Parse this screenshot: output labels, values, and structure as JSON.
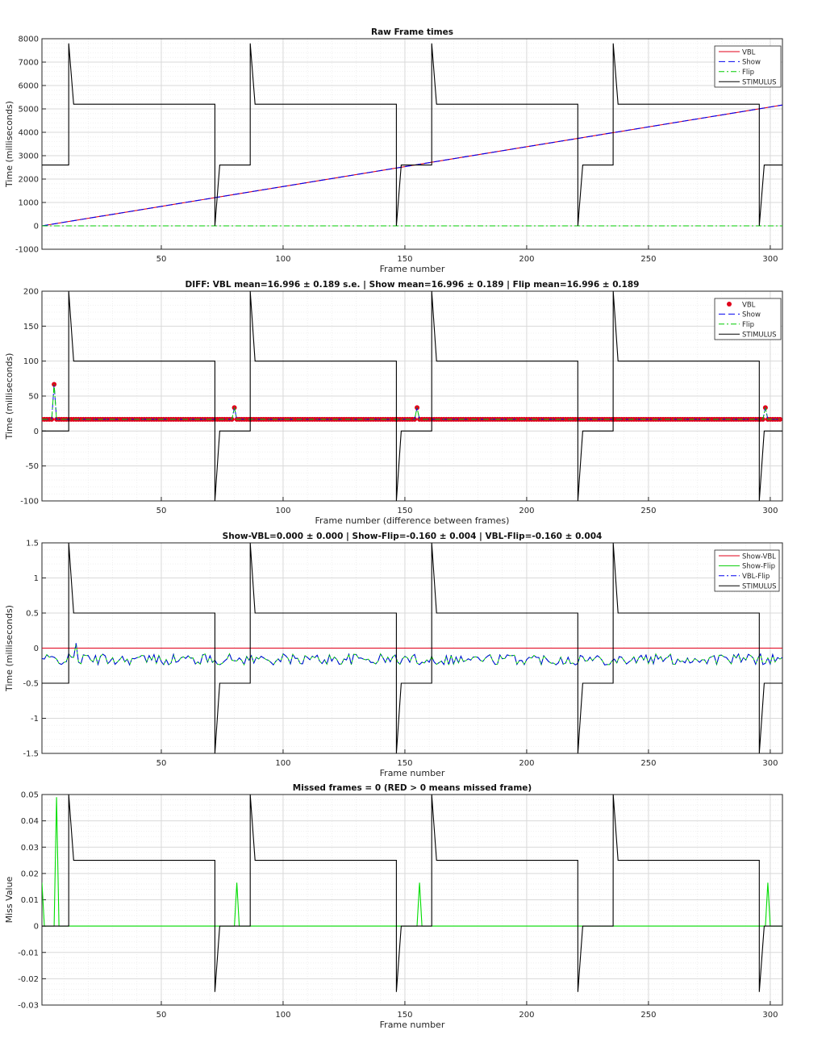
{
  "figure": {
    "background": "#ffffff"
  },
  "colors": {
    "vbl": "#e0001a",
    "show": "#0000ee",
    "flip": "#00cc00",
    "stimulus": "#000000",
    "missed": "#00dd00",
    "grid": "#d9d9d9"
  },
  "chart_data": [
    {
      "type": "line",
      "title": "Raw Frame times",
      "xlabel": "Frame number",
      "ylabel": "Time (milliseconds)",
      "xlim": [
        1,
        305
      ],
      "ylim": [
        -1000,
        8000
      ],
      "xticks": [
        50,
        100,
        150,
        200,
        250,
        300
      ],
      "yticks": [
        -1000,
        0,
        1000,
        2000,
        3000,
        4000,
        5000,
        6000,
        7000,
        8000
      ],
      "grid": true,
      "legend_position": "top-right",
      "series": [
        {
          "name": "VBL",
          "kind": "ramp",
          "slope": 16.996,
          "start_y": 0,
          "style": "solid",
          "color": "#e0001a"
        },
        {
          "name": "Show",
          "kind": "ramp",
          "slope": 16.996,
          "start_y": 0,
          "style": "dashed",
          "color": "#0000ee"
        },
        {
          "name": "Flip",
          "kind": "constant",
          "y": 0,
          "style": "dashdot",
          "color": "#00cc00"
        },
        {
          "name": "STIMULUS",
          "kind": "stimulus",
          "style": "solid",
          "color": "#000000",
          "levels": {
            "low": 2600,
            "high": 5200,
            "peak": 7800,
            "dip": 0
          }
        }
      ]
    },
    {
      "type": "line",
      "title": "DIFF: VBL mean=16.996 ± 0.189 s.e. | Show mean=16.996 ± 0.189 | Flip mean=16.996 ± 0.189",
      "xlabel": "Frame number (difference between frames)",
      "ylabel": "Time (milliseconds)",
      "xlim": [
        1,
        305
      ],
      "ylim": [
        -100,
        200
      ],
      "xticks": [
        50,
        100,
        150,
        200,
        250,
        300
      ],
      "yticks": [
        -100,
        -50,
        0,
        50,
        100,
        150,
        200
      ],
      "grid": true,
      "legend_position": "top-right",
      "baseline": 16.7,
      "spikes": [
        {
          "x": 6,
          "y": 66.7
        },
        {
          "x": 80,
          "y": 33.4
        },
        {
          "x": 155,
          "y": 33.4
        },
        {
          "x": 298,
          "y": 33.4
        }
      ],
      "series": [
        {
          "name": "VBL",
          "kind": "markers",
          "color": "#e0001a"
        },
        {
          "name": "Show",
          "kind": "diff",
          "style": "dashed",
          "color": "#0000ee"
        },
        {
          "name": "Flip",
          "kind": "diff",
          "style": "dashdot",
          "color": "#00cc00"
        },
        {
          "name": "STIMULUS",
          "kind": "stimulus",
          "style": "solid",
          "color": "#000000",
          "levels": {
            "low": 0,
            "high": 100,
            "peak": 200,
            "dip": -100
          }
        }
      ]
    },
    {
      "type": "line",
      "title": "Show-VBL=0.000 ± 0.000 | Show-Flip=-0.160 ± 0.004 | VBL-Flip=-0.160 ± 0.004",
      "xlabel": "Frame number",
      "ylabel": "Time (milliseconds)",
      "xlim": [
        1,
        305
      ],
      "ylim": [
        -1.5,
        1.5
      ],
      "xticks": [
        50,
        100,
        150,
        200,
        250,
        300
      ],
      "yticks": [
        -1.5,
        -1,
        -0.5,
        0,
        0.5,
        1,
        1.5
      ],
      "grid": true,
      "legend_position": "top-right",
      "noise_mean": -0.16,
      "noise_amp": 0.08,
      "series": [
        {
          "name": "Show-VBL",
          "kind": "constant",
          "y": 0,
          "style": "solid",
          "color": "#e0001a"
        },
        {
          "name": "Show-Flip",
          "kind": "noise",
          "style": "solid",
          "color": "#00cc00"
        },
        {
          "name": "VBL-Flip",
          "kind": "noise",
          "style": "dashdot",
          "color": "#0000ee"
        },
        {
          "name": "STIMULUS",
          "kind": "stimulus",
          "style": "solid",
          "color": "#000000",
          "levels": {
            "low": -0.5,
            "high": 0.5,
            "peak": 1.5,
            "dip": -1.5
          }
        }
      ]
    },
    {
      "type": "line",
      "title": "Missed frames = 0 (RED > 0 means missed frame)",
      "xlabel": "Frame number",
      "ylabel": "Miss Value",
      "xlim": [
        1,
        305
      ],
      "ylim": [
        -0.03,
        0.05
      ],
      "xticks": [
        50,
        100,
        150,
        200,
        250,
        300
      ],
      "yticks": [
        -0.03,
        -0.02,
        -0.01,
        0,
        0.01,
        0.02,
        0.03,
        0.04,
        0.05
      ],
      "grid": true,
      "legend_position": "none",
      "miss_spikes": [
        {
          "x": 1,
          "y": 0.0165
        },
        {
          "x": 7,
          "y": 0.049
        },
        {
          "x": 81,
          "y": 0.0165
        },
        {
          "x": 156,
          "y": 0.0165
        },
        {
          "x": 299,
          "y": 0.0165
        }
      ],
      "series": [
        {
          "kind": "miss",
          "style": "solid",
          "color": "#00dd00"
        },
        {
          "kind": "stimulus",
          "style": "solid",
          "color": "#000000",
          "levels": {
            "low": 0,
            "high": 0.025,
            "peak": 0.05,
            "dip": -0.025
          }
        }
      ]
    }
  ],
  "stimulus_cycle": {
    "start": 12,
    "period": 74.5,
    "peak_len": 2,
    "high_len": 58,
    "dip_len": 2,
    "low_len": 12.5
  }
}
